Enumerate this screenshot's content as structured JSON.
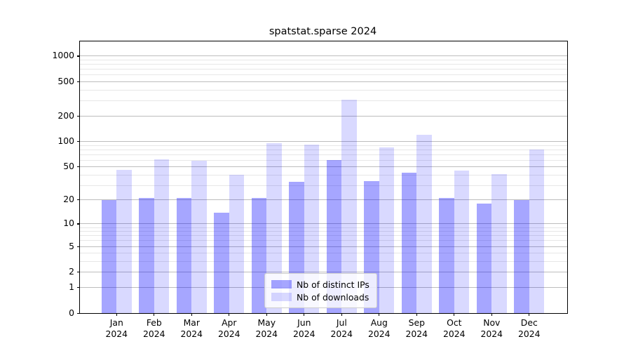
{
  "chart_data": {
    "type": "bar",
    "title": "spatstat.sparse 2024",
    "categories": [
      "Jan",
      "Feb",
      "Mar",
      "Apr",
      "May",
      "Jun",
      "Jul",
      "Aug",
      "Sep",
      "Oct",
      "Nov",
      "Dec"
    ],
    "x_year_label": "2024",
    "series": [
      {
        "name": "Nb of distinct IPs",
        "color": "rgba(0,0,255,0.35)",
        "values": [
          20,
          21,
          21,
          14,
          21,
          33,
          60,
          34,
          43,
          21,
          18,
          20
        ]
      },
      {
        "name": "Nb of downloads",
        "color": "rgba(0,0,255,0.15)",
        "values": [
          46,
          61,
          59,
          40,
          95,
          91,
          310,
          85,
          120,
          45,
          41,
          80
        ]
      }
    ],
    "yscale": "log1p",
    "y_major_ticks": [
      0,
      1,
      2,
      5,
      10,
      20,
      50,
      100,
      200,
      500,
      1000
    ],
    "y_minor_ticks": [
      3,
      4,
      6,
      7,
      8,
      9,
      30,
      40,
      60,
      70,
      80,
      90,
      300,
      400,
      600,
      700,
      800,
      900
    ],
    "ylim": [
      0,
      1486
    ],
    "grid": true,
    "legend_position": "lower center",
    "axis_color": "#000000",
    "grid_major_color": "#bdbdbd",
    "grid_minor_color": "#e7e7e7"
  }
}
